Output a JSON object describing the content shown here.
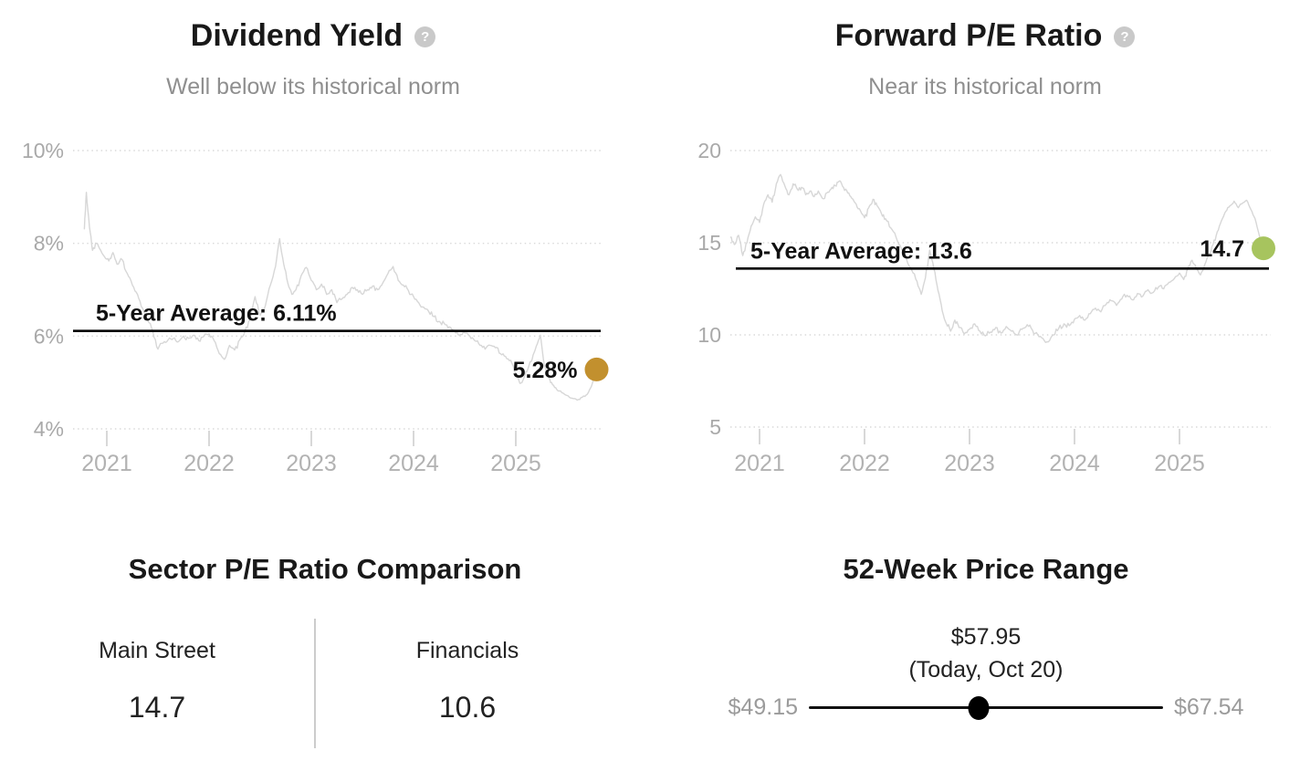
{
  "icons": {
    "help_glyph": "?"
  },
  "chart_data": [
    {
      "type": "line",
      "id": "dividend-yield",
      "title": "Dividend Yield",
      "subtitle": "Well below its historical norm",
      "avg_label": "5-Year Average: 6.11%",
      "avg_value": 6.11,
      "current_label": "5.28%",
      "current_value": 5.28,
      "current_year": 2025.79,
      "dot_color": "#c2902e",
      "line_color": "#d7d7d7",
      "ylim": [
        4,
        10
      ],
      "y_ticks": [
        {
          "label": "10%",
          "value": 10
        },
        {
          "label": "8%",
          "value": 8
        },
        {
          "label": "6%",
          "value": 6
        },
        {
          "label": "4%",
          "value": 4
        }
      ],
      "x_ticks": [
        {
          "label": "2021",
          "value": 2021
        },
        {
          "label": "2022",
          "value": 2022
        },
        {
          "label": "2023",
          "value": 2023
        },
        {
          "label": "2024",
          "value": 2024
        },
        {
          "label": "2025",
          "value": 2025
        }
      ],
      "series": [
        [
          2020.78,
          8.3
        ],
        [
          2020.8,
          9.1
        ],
        [
          2020.83,
          8.35
        ],
        [
          2020.86,
          7.85
        ],
        [
          2020.9,
          8.0
        ],
        [
          2020.94,
          7.85
        ],
        [
          2020.98,
          7.7
        ],
        [
          2021.02,
          7.62
        ],
        [
          2021.06,
          7.8
        ],
        [
          2021.1,
          7.55
        ],
        [
          2021.15,
          7.65
        ],
        [
          2021.2,
          7.35
        ],
        [
          2021.25,
          7.1
        ],
        [
          2021.3,
          6.9
        ],
        [
          2021.35,
          6.6
        ],
        [
          2021.4,
          6.35
        ],
        [
          2021.45,
          6.1
        ],
        [
          2021.5,
          5.72
        ],
        [
          2021.55,
          5.85
        ],
        [
          2021.6,
          5.92
        ],
        [
          2021.65,
          5.95
        ],
        [
          2021.7,
          5.88
        ],
        [
          2021.75,
          6.0
        ],
        [
          2021.8,
          5.95
        ],
        [
          2021.85,
          6.02
        ],
        [
          2021.9,
          5.9
        ],
        [
          2021.95,
          6.0
        ],
        [
          2022.0,
          6.05
        ],
        [
          2022.05,
          5.9
        ],
        [
          2022.1,
          5.62
        ],
        [
          2022.15,
          5.5
        ],
        [
          2022.2,
          5.8
        ],
        [
          2022.25,
          5.7
        ],
        [
          2022.3,
          5.92
        ],
        [
          2022.35,
          6.1
        ],
        [
          2022.4,
          6.35
        ],
        [
          2022.45,
          6.85
        ],
        [
          2022.5,
          6.45
        ],
        [
          2022.55,
          6.65
        ],
        [
          2022.6,
          7.1
        ],
        [
          2022.65,
          7.5
        ],
        [
          2022.69,
          8.1
        ],
        [
          2022.73,
          7.55
        ],
        [
          2022.77,
          7.15
        ],
        [
          2022.81,
          6.9
        ],
        [
          2022.85,
          7.0
        ],
        [
          2022.9,
          7.3
        ],
        [
          2022.95,
          7.48
        ],
        [
          2023.0,
          7.2
        ],
        [
          2023.05,
          7.0
        ],
        [
          2023.1,
          7.12
        ],
        [
          2023.15,
          6.9
        ],
        [
          2023.2,
          7.0
        ],
        [
          2023.25,
          6.72
        ],
        [
          2023.3,
          6.8
        ],
        [
          2023.35,
          6.9
        ],
        [
          2023.4,
          7.05
        ],
        [
          2023.45,
          7.0
        ],
        [
          2023.5,
          6.9
        ],
        [
          2023.55,
          7.0
        ],
        [
          2023.6,
          7.08
        ],
        [
          2023.65,
          7.0
        ],
        [
          2023.7,
          7.15
        ],
        [
          2023.75,
          7.35
        ],
        [
          2023.8,
          7.5
        ],
        [
          2023.85,
          7.2
        ],
        [
          2023.9,
          7.1
        ],
        [
          2023.95,
          6.98
        ],
        [
          2024.0,
          6.85
        ],
        [
          2024.05,
          6.72
        ],
        [
          2024.1,
          6.62
        ],
        [
          2024.15,
          6.52
        ],
        [
          2024.2,
          6.42
        ],
        [
          2024.25,
          6.32
        ],
        [
          2024.3,
          6.27
        ],
        [
          2024.35,
          6.2
        ],
        [
          2024.4,
          6.12
        ],
        [
          2024.45,
          6.02
        ],
        [
          2024.5,
          6.07
        ],
        [
          2024.55,
          6.0
        ],
        [
          2024.6,
          5.9
        ],
        [
          2024.65,
          5.8
        ],
        [
          2024.7,
          5.72
        ],
        [
          2024.75,
          5.8
        ],
        [
          2024.8,
          5.75
        ],
        [
          2024.85,
          5.62
        ],
        [
          2024.9,
          5.56
        ],
        [
          2024.95,
          5.48
        ],
        [
          2025.0,
          5.2
        ],
        [
          2025.04,
          4.98
        ],
        [
          2025.08,
          5.1
        ],
        [
          2025.12,
          5.3
        ],
        [
          2025.16,
          5.5
        ],
        [
          2025.2,
          5.78
        ],
        [
          2025.24,
          6.02
        ],
        [
          2025.28,
          5.35
        ],
        [
          2025.32,
          5.12
        ],
        [
          2025.36,
          4.95
        ],
        [
          2025.4,
          4.85
        ],
        [
          2025.45,
          4.78
        ],
        [
          2025.5,
          4.72
        ],
        [
          2025.55,
          4.66
        ],
        [
          2025.6,
          4.62
        ],
        [
          2025.65,
          4.68
        ],
        [
          2025.7,
          4.75
        ],
        [
          2025.74,
          4.92
        ],
        [
          2025.79,
          5.28
        ]
      ]
    },
    {
      "type": "line",
      "id": "forward-pe",
      "title": "Forward P/E Ratio",
      "subtitle": "Near its historical norm",
      "avg_label": "5-Year Average: 13.6",
      "avg_value": 13.6,
      "current_label": "14.7",
      "current_value": 14.7,
      "current_year": 2025.8,
      "dot_color": "#a7c45e",
      "line_color": "#d7d7d7",
      "ylim": [
        5,
        20
      ],
      "y_ticks": [
        {
          "label": "20",
          "value": 20
        },
        {
          "label": "15",
          "value": 15
        },
        {
          "label": "10",
          "value": 10
        },
        {
          "label": "5",
          "value": 5
        }
      ],
      "x_ticks": [
        {
          "label": "2021",
          "value": 2021
        },
        {
          "label": "2022",
          "value": 2022
        },
        {
          "label": "2023",
          "value": 2023
        },
        {
          "label": "2024",
          "value": 2024
        },
        {
          "label": "2025",
          "value": 2025
        }
      ],
      "series": [
        [
          2020.72,
          15.3
        ],
        [
          2020.76,
          14.9
        ],
        [
          2020.8,
          15.4
        ],
        [
          2020.84,
          14.3
        ],
        [
          2020.88,
          15.0
        ],
        [
          2020.92,
          15.9
        ],
        [
          2020.96,
          16.4
        ],
        [
          2021.0,
          16.1
        ],
        [
          2021.04,
          17.1
        ],
        [
          2021.08,
          17.6
        ],
        [
          2021.12,
          17.2
        ],
        [
          2021.16,
          18.2
        ],
        [
          2021.2,
          18.7
        ],
        [
          2021.24,
          18.1
        ],
        [
          2021.28,
          17.6
        ],
        [
          2021.32,
          18.2
        ],
        [
          2021.36,
          17.9
        ],
        [
          2021.4,
          18.0
        ],
        [
          2021.44,
          17.6
        ],
        [
          2021.48,
          17.8
        ],
        [
          2021.52,
          17.5
        ],
        [
          2021.56,
          17.8
        ],
        [
          2021.6,
          17.4
        ],
        [
          2021.64,
          17.7
        ],
        [
          2021.68,
          17.9
        ],
        [
          2021.72,
          18.1
        ],
        [
          2021.76,
          18.35
        ],
        [
          2021.8,
          18.0
        ],
        [
          2021.84,
          17.7
        ],
        [
          2021.88,
          17.4
        ],
        [
          2021.92,
          17.1
        ],
        [
          2021.96,
          16.75
        ],
        [
          2022.0,
          16.35
        ],
        [
          2022.04,
          16.9
        ],
        [
          2022.08,
          17.35
        ],
        [
          2022.12,
          17.0
        ],
        [
          2022.16,
          16.6
        ],
        [
          2022.2,
          16.3
        ],
        [
          2022.25,
          15.8
        ],
        [
          2022.3,
          15.3
        ],
        [
          2022.35,
          14.7
        ],
        [
          2022.4,
          14.1
        ],
        [
          2022.45,
          13.5
        ],
        [
          2022.5,
          12.9
        ],
        [
          2022.54,
          12.2
        ],
        [
          2022.58,
          13.1
        ],
        [
          2022.62,
          14.6
        ],
        [
          2022.66,
          13.6
        ],
        [
          2022.7,
          12.4
        ],
        [
          2022.74,
          11.3
        ],
        [
          2022.78,
          10.6
        ],
        [
          2022.82,
          10.2
        ],
        [
          2022.86,
          10.8
        ],
        [
          2022.9,
          10.4
        ],
        [
          2022.95,
          10.05
        ],
        [
          2023.0,
          10.3
        ],
        [
          2023.05,
          10.6
        ],
        [
          2023.1,
          10.2
        ],
        [
          2023.15,
          9.95
        ],
        [
          2023.2,
          10.15
        ],
        [
          2023.25,
          10.4
        ],
        [
          2023.3,
          10.1
        ],
        [
          2023.35,
          10.45
        ],
        [
          2023.4,
          10.2
        ],
        [
          2023.45,
          10.0
        ],
        [
          2023.5,
          10.3
        ],
        [
          2023.55,
          10.55
        ],
        [
          2023.6,
          10.25
        ],
        [
          2023.65,
          10.0
        ],
        [
          2023.7,
          9.8
        ],
        [
          2023.75,
          9.62
        ],
        [
          2023.8,
          10.0
        ],
        [
          2023.85,
          10.35
        ],
        [
          2023.9,
          10.6
        ],
        [
          2023.95,
          10.5
        ],
        [
          2024.0,
          10.85
        ],
        [
          2024.05,
          11.05
        ],
        [
          2024.1,
          10.8
        ],
        [
          2024.15,
          11.15
        ],
        [
          2024.2,
          11.45
        ],
        [
          2024.25,
          11.25
        ],
        [
          2024.3,
          11.65
        ],
        [
          2024.35,
          11.85
        ],
        [
          2024.4,
          11.6
        ],
        [
          2024.45,
          11.95
        ],
        [
          2024.5,
          12.15
        ],
        [
          2024.55,
          11.9
        ],
        [
          2024.6,
          12.25
        ],
        [
          2024.65,
          12.1
        ],
        [
          2024.7,
          12.45
        ],
        [
          2024.75,
          12.3
        ],
        [
          2024.8,
          12.6
        ],
        [
          2024.85,
          12.5
        ],
        [
          2024.9,
          12.85
        ],
        [
          2024.95,
          13.05
        ],
        [
          2025.0,
          13.35
        ],
        [
          2025.04,
          13.0
        ],
        [
          2025.08,
          13.6
        ],
        [
          2025.12,
          14.05
        ],
        [
          2025.16,
          13.6
        ],
        [
          2025.2,
          13.25
        ],
        [
          2025.24,
          13.8
        ],
        [
          2025.28,
          14.3
        ],
        [
          2025.32,
          14.9
        ],
        [
          2025.36,
          15.6
        ],
        [
          2025.4,
          16.2
        ],
        [
          2025.44,
          16.7
        ],
        [
          2025.48,
          17.0
        ],
        [
          2025.52,
          17.25
        ],
        [
          2025.56,
          16.9
        ],
        [
          2025.6,
          17.15
        ],
        [
          2025.64,
          17.3
        ],
        [
          2025.68,
          16.8
        ],
        [
          2025.72,
          16.3
        ],
        [
          2025.76,
          15.4
        ],
        [
          2025.8,
          14.7
        ]
      ]
    },
    {
      "type": "table",
      "id": "sector-comparison",
      "title": "Sector P/E Ratio Comparison",
      "items": [
        {
          "label": "Main Street",
          "value": "14.7"
        },
        {
          "label": "Financials",
          "value": "10.6"
        }
      ]
    },
    {
      "type": "range",
      "id": "price-range",
      "title": "52-Week Price Range",
      "current_label": "$57.95",
      "current_note": "(Today, Oct 20)",
      "low_label": "$49.15",
      "high_label": "$67.54",
      "low": 49.15,
      "high": 67.54,
      "current": 57.95
    }
  ]
}
